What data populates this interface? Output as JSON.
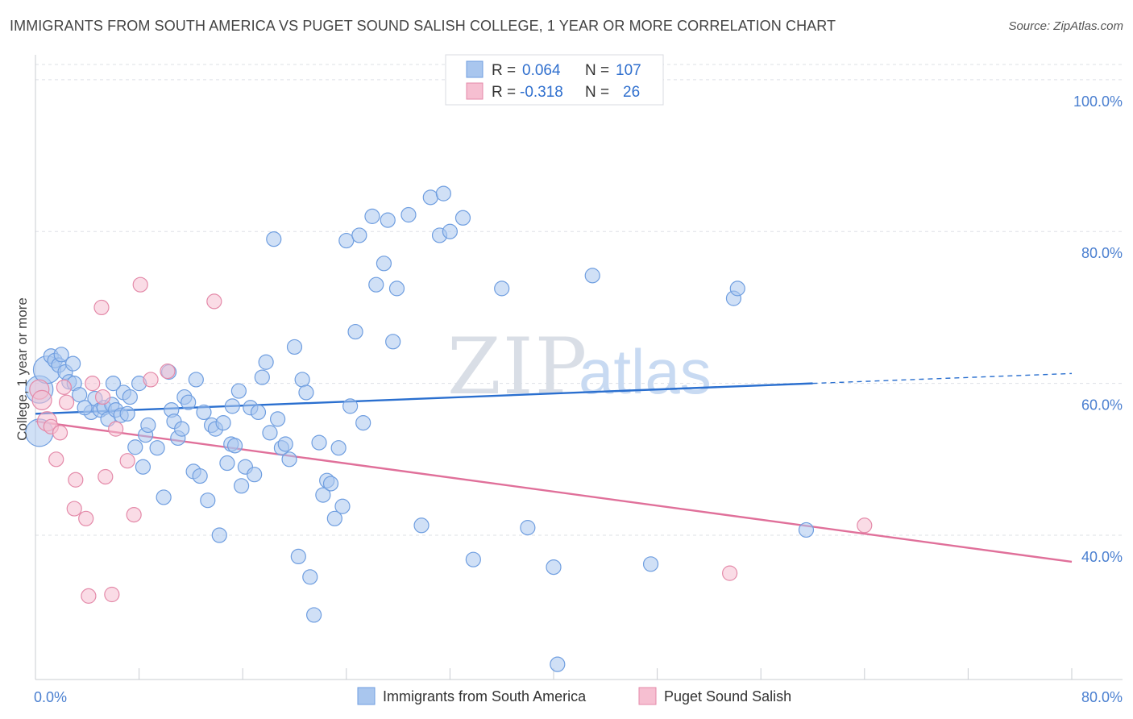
{
  "title": "IMMIGRANTS FROM SOUTH AMERICA VS PUGET SOUND SALISH COLLEGE, 1 YEAR OR MORE CORRELATION CHART",
  "source": "Source: ZipAtlas.com",
  "watermark": {
    "zip": "ZIP",
    "atlas": "atlas"
  },
  "colors": {
    "blue_fill": "#a9c6ee",
    "blue_stroke": "#6f9ee0",
    "blue_line": "#2a6fcf",
    "pink_fill": "#f6bfd1",
    "pink_stroke": "#e48aa9",
    "pink_line": "#e0709a",
    "grid": "#dde0e6",
    "tick_text": "#4a7fd0"
  },
  "chart_data": {
    "type": "scatter",
    "title": "IMMIGRANTS FROM SOUTH AMERICA VS PUGET SOUND SALISH COLLEGE, 1 YEAR OR MORE CORRELATION CHART",
    "xlabel": "",
    "ylabel": "College, 1 year or more",
    "xlim": [
      0,
      80
    ],
    "ylim": [
      21,
      102
    ],
    "x_ticks": [
      "0.0%",
      "80.0%"
    ],
    "y_ticks": [
      {
        "value": 100,
        "label": "100.0%"
      },
      {
        "value": 80,
        "label": "80.0%"
      },
      {
        "value": 60,
        "label": "60.0%"
      },
      {
        "value": 40,
        "label": "40.0%"
      }
    ],
    "grid": true,
    "legend": {
      "placement": "top-center",
      "entries": [
        {
          "r_label": "R =",
          "r_value": "0.064",
          "n_label": "N =",
          "n_value": "107"
        },
        {
          "r_label": "R =",
          "r_value": "-0.318",
          "n_label": "N =",
          "n_value": "26"
        }
      ]
    },
    "bottom_legend": [
      "Immigrants from South America",
      "Puget Sound Salish"
    ],
    "series": [
      {
        "name": "Immigrants from South America",
        "color": "#a9c6ee",
        "trend": {
          "x": [
            0,
            60
          ],
          "y": [
            56.0,
            60.0
          ],
          "dashed_to": [
            80,
            61.3
          ]
        },
        "points": [
          [
            0.3,
            59.2
          ],
          [
            0.3,
            53.5
          ],
          [
            0.9,
            61.8
          ],
          [
            1.2,
            63.6
          ],
          [
            1.5,
            63.0
          ],
          [
            1.8,
            62.4
          ],
          [
            2.0,
            63.8
          ],
          [
            2.3,
            61.5
          ],
          [
            2.6,
            60.2
          ],
          [
            2.9,
            62.6
          ],
          [
            3.0,
            60.0
          ],
          [
            3.4,
            58.5
          ],
          [
            4.3,
            56.2
          ],
          [
            4.6,
            58.0
          ],
          [
            5.0,
            56.5
          ],
          [
            5.3,
            56.8
          ],
          [
            5.6,
            55.3
          ],
          [
            5.9,
            57.2
          ],
          [
            6.2,
            56.5
          ],
          [
            6.6,
            55.8
          ],
          [
            6.8,
            58.8
          ],
          [
            7.1,
            56.0
          ],
          [
            7.3,
            58.2
          ],
          [
            7.7,
            51.6
          ],
          [
            8.0,
            60.0
          ],
          [
            8.3,
            49.0
          ],
          [
            8.5,
            53.2
          ],
          [
            8.7,
            54.5
          ],
          [
            9.4,
            51.5
          ],
          [
            9.9,
            45.0
          ],
          [
            10.3,
            61.5
          ],
          [
            10.5,
            56.5
          ],
          [
            10.7,
            55.0
          ],
          [
            11.0,
            52.8
          ],
          [
            11.3,
            54.0
          ],
          [
            11.5,
            58.2
          ],
          [
            11.8,
            57.5
          ],
          [
            12.2,
            48.4
          ],
          [
            12.4,
            60.5
          ],
          [
            12.7,
            47.8
          ],
          [
            13.0,
            56.2
          ],
          [
            13.3,
            44.6
          ],
          [
            13.6,
            54.5
          ],
          [
            13.9,
            54.0
          ],
          [
            14.2,
            40.0
          ],
          [
            14.5,
            54.8
          ],
          [
            14.8,
            49.5
          ],
          [
            15.1,
            52.0
          ],
          [
            15.4,
            51.8
          ],
          [
            15.7,
            59.0
          ],
          [
            15.9,
            46.5
          ],
          [
            16.2,
            49.0
          ],
          [
            16.6,
            56.8
          ],
          [
            16.9,
            48.0
          ],
          [
            17.2,
            56.2
          ],
          [
            17.5,
            60.8
          ],
          [
            17.8,
            62.8
          ],
          [
            18.1,
            53.5
          ],
          [
            18.4,
            79.0
          ],
          [
            18.7,
            55.3
          ],
          [
            19.0,
            51.5
          ],
          [
            19.3,
            52.0
          ],
          [
            19.6,
            50.0
          ],
          [
            20.0,
            64.8
          ],
          [
            20.3,
            37.2
          ],
          [
            20.6,
            60.5
          ],
          [
            20.9,
            58.8
          ],
          [
            21.2,
            34.5
          ],
          [
            21.5,
            29.5
          ],
          [
            21.9,
            52.2
          ],
          [
            22.2,
            45.3
          ],
          [
            22.5,
            47.2
          ],
          [
            22.8,
            46.8
          ],
          [
            23.1,
            42.2
          ],
          [
            23.4,
            51.5
          ],
          [
            23.7,
            43.8
          ],
          [
            24.0,
            78.8
          ],
          [
            24.3,
            57.0
          ],
          [
            24.7,
            66.8
          ],
          [
            25.0,
            79.5
          ],
          [
            25.3,
            54.8
          ],
          [
            26.0,
            82.0
          ],
          [
            26.3,
            73.0
          ],
          [
            26.9,
            75.8
          ],
          [
            27.2,
            81.5
          ],
          [
            27.6,
            65.5
          ],
          [
            27.9,
            72.5
          ],
          [
            28.8,
            82.2
          ],
          [
            29.8,
            41.3
          ],
          [
            30.5,
            84.5
          ],
          [
            31.2,
            79.5
          ],
          [
            31.5,
            85.0
          ],
          [
            32.0,
            80.0
          ],
          [
            33.0,
            81.8
          ],
          [
            33.8,
            36.8
          ],
          [
            36.0,
            72.5
          ],
          [
            38.0,
            41.0
          ],
          [
            40.0,
            35.8
          ],
          [
            43.0,
            74.2
          ],
          [
            47.5,
            36.2
          ],
          [
            53.9,
            71.2
          ],
          [
            54.2,
            72.5
          ],
          [
            59.5,
            40.7
          ],
          [
            40.3,
            23.0
          ],
          [
            15.2,
            57.0
          ],
          [
            3.8,
            56.8
          ],
          [
            6.0,
            60.0
          ]
        ]
      },
      {
        "name": "Puget Sound Salish",
        "color": "#f6bfd1",
        "trend": {
          "x": [
            0,
            80
          ],
          "y": [
            55.0,
            36.5
          ]
        },
        "points": [
          [
            0.3,
            59.2
          ],
          [
            0.5,
            57.8
          ],
          [
            0.9,
            55.0
          ],
          [
            1.2,
            54.3
          ],
          [
            1.6,
            50.0
          ],
          [
            1.9,
            53.5
          ],
          [
            2.2,
            59.5
          ],
          [
            2.4,
            57.5
          ],
          [
            3.1,
            47.3
          ],
          [
            3.0,
            43.5
          ],
          [
            3.9,
            42.2
          ],
          [
            4.1,
            32.0
          ],
          [
            4.4,
            60.0
          ],
          [
            5.1,
            70.0
          ],
          [
            5.4,
            47.7
          ],
          [
            5.9,
            32.2
          ],
          [
            6.2,
            54.0
          ],
          [
            7.1,
            49.8
          ],
          [
            7.6,
            42.7
          ],
          [
            8.1,
            73.0
          ],
          [
            8.9,
            60.5
          ],
          [
            10.2,
            61.6
          ],
          [
            13.8,
            70.8
          ],
          [
            53.6,
            35.0
          ],
          [
            64.0,
            41.3
          ],
          [
            5.2,
            58.2
          ]
        ]
      }
    ]
  }
}
